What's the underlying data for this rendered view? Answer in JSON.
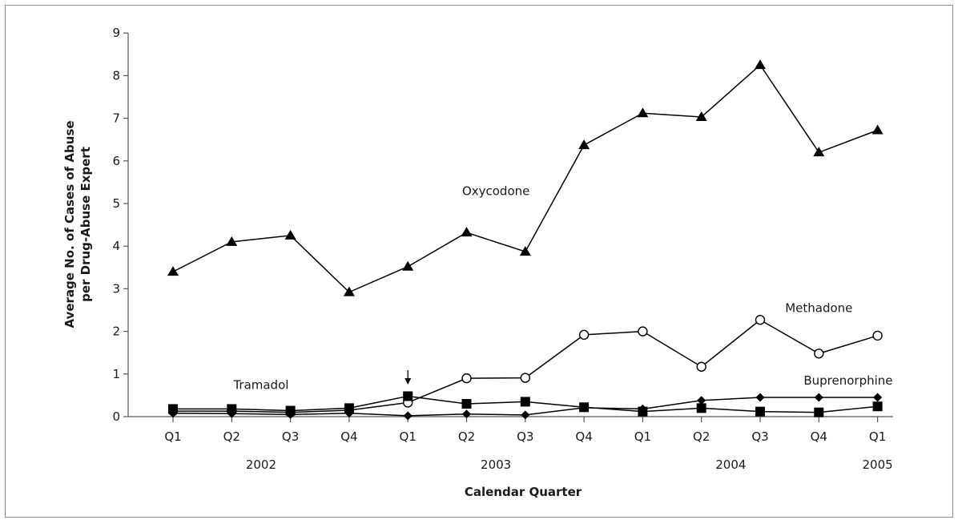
{
  "chart_data": {
    "type": "line",
    "title": "",
    "xlabel": "Calendar Quarter",
    "ylabel_lines": [
      "Average No. of Cases of Abuse",
      "per Drug-Abuse Expert"
    ],
    "ylim": [
      0,
      9
    ],
    "y_ticks": [
      "0",
      "1",
      "2",
      "3",
      "4",
      "5",
      "6",
      "7",
      "8",
      "9"
    ],
    "categories": [
      "Q1",
      "Q2",
      "Q3",
      "Q4",
      "Q1",
      "Q2",
      "Q3",
      "Q4",
      "Q1",
      "Q2",
      "Q3",
      "Q4",
      "Q1"
    ],
    "years": [
      {
        "label": "2002",
        "center_index": 1.5
      },
      {
        "label": "2003",
        "center_index": 5.5
      },
      {
        "label": "2004",
        "center_index": 9.5
      },
      {
        "label": "2005",
        "center_index": 12
      }
    ],
    "grid": false,
    "arrow_annotation_index": 4,
    "series": [
      {
        "name": "Oxycodone",
        "marker": "triangle",
        "values": [
          3.4,
          4.1,
          4.25,
          2.92,
          3.52,
          4.32,
          3.87,
          6.37,
          7.12,
          7.03,
          8.25,
          6.2,
          6.72
        ],
        "label_x_index": 5.5,
        "label_y": 5.2
      },
      {
        "name": "Methadone",
        "marker": "circle-open",
        "values": [
          0.13,
          0.13,
          0.1,
          0.15,
          0.33,
          0.9,
          0.91,
          1.92,
          2.0,
          1.17,
          2.27,
          1.48,
          1.9
        ],
        "label_x_index": 11,
        "label_y": 2.45
      },
      {
        "name": "Tramadol",
        "marker": "square",
        "values": [
          0.18,
          0.18,
          0.14,
          0.2,
          0.48,
          0.3,
          0.35,
          0.22,
          0.12,
          0.2,
          0.12,
          0.1,
          0.24
        ],
        "label_x_index": 1.5,
        "label_y": 0.65
      },
      {
        "name": "Buprenorphine",
        "marker": "diamond",
        "values": [
          0.08,
          0.07,
          0.05,
          0.08,
          0.02,
          0.06,
          0.04,
          0.21,
          0.18,
          0.38,
          0.45,
          0.45,
          0.45
        ],
        "label_x_index": 11.5,
        "label_y": 0.75
      }
    ]
  }
}
